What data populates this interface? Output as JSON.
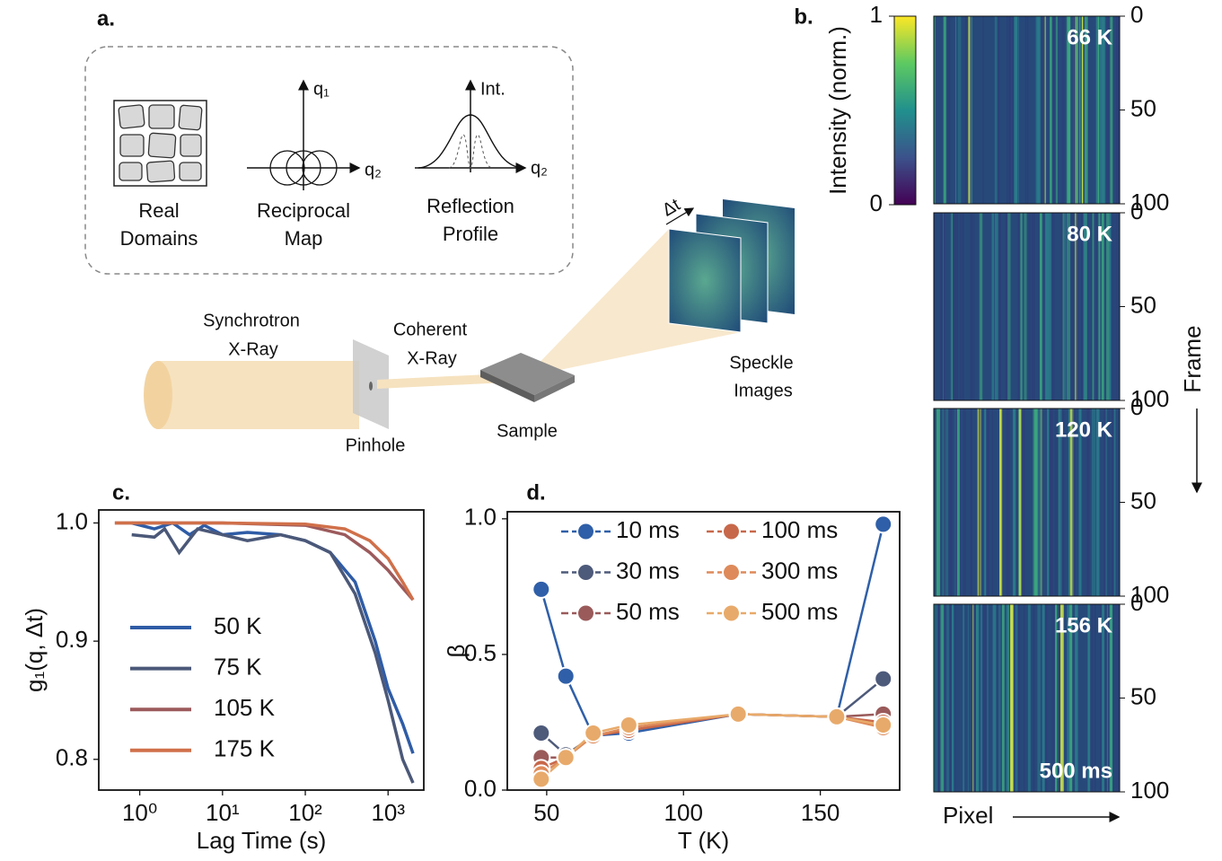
{
  "panel_a": {
    "label": "a.",
    "real_domains": [
      "Real",
      "Domains"
    ],
    "reciprocal_map": [
      "Reciprocal",
      "Map"
    ],
    "reflection_profile": [
      "Reflection",
      "Profile"
    ],
    "q1": "q₁",
    "q2_map": "q₂",
    "int": "Int.",
    "q2_profile": "q₂",
    "synchrotron": [
      "Synchrotron",
      "X-Ray"
    ],
    "coherent": [
      "Coherent",
      "X-Ray"
    ],
    "pinhole": "Pinhole",
    "sample": "Sample",
    "speckle": [
      "Speckle",
      "Images"
    ],
    "delta_t": "Δt"
  },
  "panel_b": {
    "label": "b.",
    "colorbar": {
      "label": "Intensity (norm.)",
      "lim": [
        0,
        1
      ],
      "ticks": [
        0,
        1
      ]
    },
    "images": [
      {
        "temperature": "66 K"
      },
      {
        "temperature": "80 K"
      },
      {
        "temperature": "120 K"
      },
      {
        "temperature": "156 K"
      }
    ],
    "exposure": "500 ms",
    "frame_lim": [
      0,
      100
    ],
    "frame_ticks": [
      0,
      50,
      100
    ],
    "y_label": "Frame",
    "x_label": "Pixel"
  },
  "chart_data": [
    {
      "type": "line",
      "panel_label": "c.",
      "x_label": "Lag Time (s)",
      "y_label": "g₁(q, Δt)",
      "x_scale": "log",
      "xlim": [
        0.32,
        2700
      ],
      "ylim": [
        0.774,
        1.011
      ],
      "xticks": [
        {
          "value": 1,
          "label": "10⁰"
        },
        {
          "value": 10,
          "label": "10¹"
        },
        {
          "value": 100,
          "label": "10²"
        },
        {
          "value": 1000,
          "label": "10³"
        }
      ],
      "yticks": [
        {
          "value": 0.8,
          "label": "0.8"
        },
        {
          "value": 0.9,
          "label": "0.9"
        },
        {
          "value": 1,
          "label": "1.0"
        }
      ],
      "series": [
        {
          "name": "50 K",
          "color": "#2f5ca6",
          "x": [
            0.8,
            1.5,
            2.5,
            4,
            6,
            10,
            20,
            50,
            100,
            200,
            400,
            700,
            1000,
            1500,
            2000
          ],
          "values": [
            1.0,
            0.995,
            1.0,
            0.99,
            0.998,
            0.99,
            0.992,
            0.99,
            0.985,
            0.975,
            0.95,
            0.9,
            0.86,
            0.83,
            0.805
          ]
        },
        {
          "name": "75 K",
          "color": "#4b5878",
          "x": [
            0.8,
            1.5,
            2,
            3,
            5,
            10,
            20,
            50,
            100,
            200,
            400,
            700,
            1000,
            1500,
            2000
          ],
          "values": [
            0.99,
            0.988,
            0.995,
            0.975,
            0.995,
            0.99,
            0.985,
            0.99,
            0.985,
            0.975,
            0.94,
            0.89,
            0.85,
            0.8,
            0.78
          ]
        },
        {
          "name": "105 K",
          "color": "#9c5a5c",
          "x": [
            0.5,
            10,
            100,
            300,
            600,
            1000,
            1500,
            2000
          ],
          "values": [
            1.0,
            1.0,
            0.998,
            0.99,
            0.975,
            0.96,
            0.945,
            0.935
          ]
        },
        {
          "name": "175 K",
          "color": "#d0704a",
          "x": [
            0.5,
            10,
            100,
            300,
            600,
            1000,
            1500,
            2000
          ],
          "values": [
            1.0,
            1.0,
            0.999,
            0.995,
            0.985,
            0.97,
            0.95,
            0.935
          ]
        }
      ]
    },
    {
      "type": "line",
      "panel_label": "d.",
      "markers": true,
      "x_label": "T (K)",
      "y_label": "β",
      "xlim": [
        35.6,
        179
      ],
      "ylim": [
        0,
        1.026
      ],
      "xticks": [
        50,
        100,
        150
      ],
      "yticks": [
        {
          "value": 0,
          "label": "0.0"
        },
        {
          "value": 0.5,
          "label": "0.5"
        },
        {
          "value": 1,
          "label": "1.0"
        }
      ],
      "series": [
        {
          "name": "10 ms",
          "color": "#2f5fa8",
          "x": [
            48,
            57,
            67,
            80,
            120,
            156,
            173
          ],
          "values": [
            0.74,
            0.42,
            0.2,
            0.21,
            0.28,
            0.27,
            0.98
          ]
        },
        {
          "name": "30 ms",
          "color": "#4e5a7a",
          "x": [
            48,
            57,
            67,
            80,
            120,
            156,
            173
          ],
          "values": [
            0.21,
            0.13,
            0.2,
            0.22,
            0.28,
            0.27,
            0.41
          ]
        },
        {
          "name": "50 ms",
          "color": "#9a5a5a",
          "x": [
            48,
            57,
            67,
            80,
            120,
            156,
            173
          ],
          "values": [
            0.12,
            0.12,
            0.2,
            0.22,
            0.28,
            0.27,
            0.28
          ]
        },
        {
          "name": "100 ms",
          "color": "#c8684a",
          "x": [
            48,
            57,
            67,
            80,
            120,
            156,
            173
          ],
          "values": [
            0.08,
            0.12,
            0.2,
            0.22,
            0.28,
            0.27,
            0.25
          ]
        },
        {
          "name": "300 ms",
          "color": "#de8a5a",
          "x": [
            48,
            57,
            67,
            80,
            120,
            156,
            173
          ],
          "values": [
            0.06,
            0.12,
            0.2,
            0.23,
            0.28,
            0.27,
            0.23
          ]
        },
        {
          "name": "500 ms",
          "color": "#e8aa6a",
          "x": [
            48,
            57,
            67,
            80,
            120,
            156,
            173
          ],
          "values": [
            0.04,
            0.12,
            0.21,
            0.24,
            0.28,
            0.27,
            0.24
          ]
        }
      ]
    }
  ]
}
